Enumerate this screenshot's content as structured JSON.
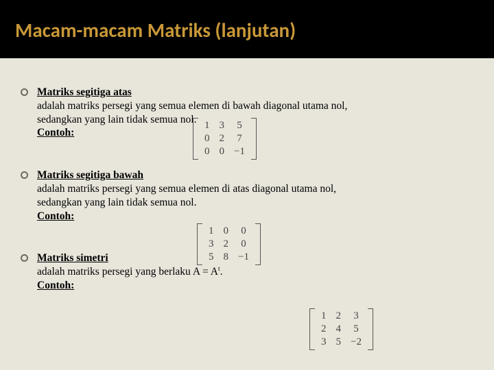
{
  "slide": {
    "title": "Macam-macam Matriks (lanjutan)",
    "background_color": "#e8e5db",
    "header_color": "#000000",
    "title_color": "#c89838"
  },
  "items": [
    {
      "heading": "Matriks segitiga atas",
      "body_line1": "adalah matriks persegi yang semua elemen di bawah diagonal utama nol,",
      "body_line2": "sedangkan yang lain tidak semua nol.",
      "contoh": "Contoh:"
    },
    {
      "heading": "Matriks segitiga bawah",
      "body_line1": "adalah matriks persegi yang semua elemen di atas diagonal utama nol,",
      "body_line2": "sedangkan yang lain tidak semua nol.",
      "contoh": "Contoh:"
    },
    {
      "heading": "Matriks simetri",
      "body_line1_pre": "adalah matriks persegi yang berlaku A = A",
      "body_line1_sup": "t",
      "body_line1_post": ".",
      "contoh": "Contoh:"
    }
  ],
  "matrices": {
    "m1": {
      "rows": [
        [
          "1",
          "3",
          "5"
        ],
        [
          "0",
          "2",
          "7"
        ],
        [
          "0",
          "0",
          "−1"
        ]
      ]
    },
    "m2": {
      "rows": [
        [
          "1",
          "0",
          "0"
        ],
        [
          "3",
          "2",
          "0"
        ],
        [
          "5",
          "8",
          "−1"
        ]
      ]
    },
    "m3": {
      "rows": [
        [
          "1",
          "2",
          "3"
        ],
        [
          "2",
          "4",
          "5"
        ],
        [
          "3",
          "5",
          "−2"
        ]
      ]
    }
  }
}
